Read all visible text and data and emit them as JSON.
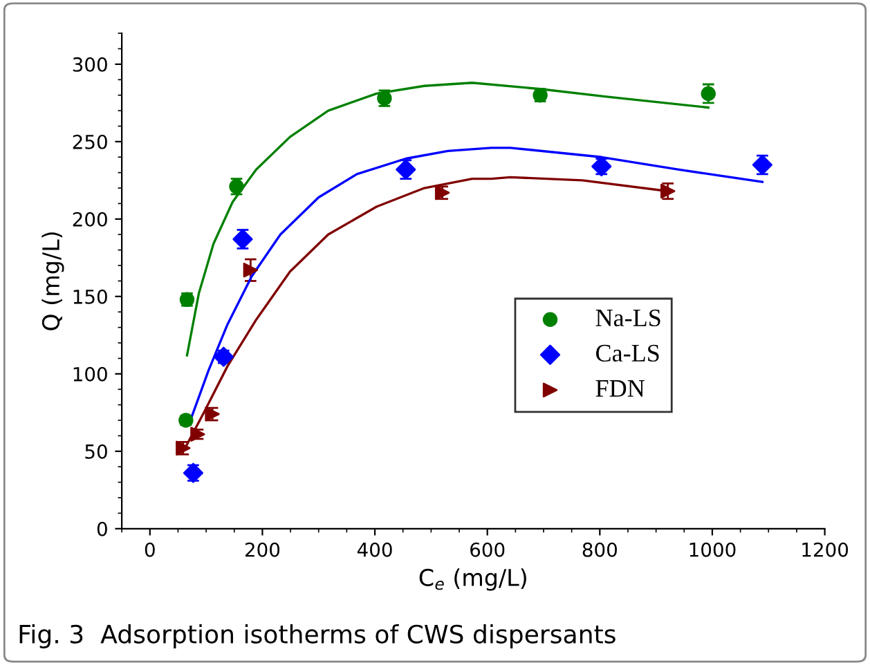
{
  "chart_data": {
    "type": "scatter",
    "xlabel": "C$_{e}$ (mg/L)",
    "ylabel": "Q (mg/L)",
    "xlim": [
      -50,
      1200
    ],
    "xticks": [
      0,
      200,
      400,
      600,
      800,
      1000,
      1200
    ],
    "ylim": [
      0,
      320
    ],
    "yticks": [
      0,
      50,
      100,
      150,
      200,
      250,
      300
    ],
    "grid": false,
    "legend": "center right",
    "annotations": [
      "Fig. 3  Adsorption isotherms of CWS dispersants"
    ],
    "series": [
      {
        "name": "Na-LS",
        "marker": "circle",
        "color": "#008000",
        "x": [
          64,
          66,
          154,
          417,
          694,
          993
        ],
        "values": [
          70,
          148,
          221,
          278,
          280,
          281
        ],
        "errors": [
          3,
          4,
          5,
          5,
          4,
          6
        ]
      },
      {
        "name": "Ca-LS",
        "marker": "diamond",
        "color": "#0000ff",
        "x": [
          77,
          131,
          165,
          455,
          803,
          1089
        ],
        "values": [
          36,
          111,
          187,
          232,
          234,
          235
        ],
        "errors": [
          5,
          4,
          6,
          6,
          5,
          6
        ]
      },
      {
        "name": "FDN",
        "marker": "triangle",
        "color": "#800000",
        "x": [
          59,
          85,
          111,
          179,
          520,
          921
        ],
        "values": [
          52,
          61,
          74,
          167,
          217,
          218
        ],
        "errors": [
          4,
          3,
          4,
          7,
          4,
          5
        ]
      },
      {
        "type": "line",
        "marker": "none",
        "color": "#008000",
        "x": [
          66,
          87,
          113,
          147,
          189,
          249,
          317,
          403,
          488,
          573,
          694,
          812,
          993
        ],
        "values": [
          112,
          152,
          184,
          211,
          232,
          253,
          270,
          281,
          286,
          288,
          284,
          279,
          272
        ]
      },
      {
        "type": "line",
        "marker": "none",
        "color": "#0000ff",
        "x": [
          74,
          104,
          138,
          181,
          232,
          300,
          368,
          455,
          530,
          607,
          641,
          803,
          939,
          1089
        ],
        "values": [
          72,
          102,
          132,
          163,
          190,
          214,
          229,
          239,
          244,
          246,
          246,
          240,
          232,
          224
        ]
      },
      {
        "type": "line",
        "marker": "none",
        "color": "#800000",
        "x": [
          61,
          96,
          138,
          189,
          249,
          317,
          403,
          488,
          573,
          607,
          641,
          769,
          921
        ],
        "values": [
          51,
          75,
          105,
          135,
          166,
          190,
          208,
          220,
          226,
          226,
          227,
          225,
          218
        ]
      }
    ]
  }
}
